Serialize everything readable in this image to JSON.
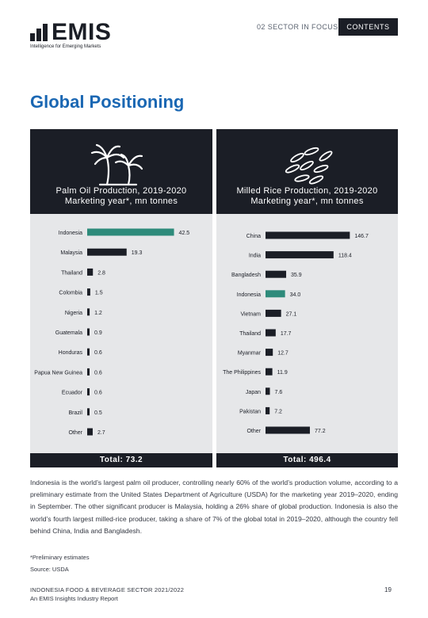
{
  "brand": {
    "name": "EMIS",
    "tagline": "Intelligence for Emerging Markets"
  },
  "nav": {
    "section": "02 SECTOR IN FOCUS",
    "contents": "CONTENTS"
  },
  "page_title": "Global Positioning",
  "colors": {
    "dark": "#1b1e26",
    "accent": "#2e8b7b",
    "title_blue": "#1a67b3",
    "panel_bg": "#e6e7e9"
  },
  "chart_data": [
    {
      "type": "bar",
      "orientation": "horizontal",
      "title": "Palm Oil Production, 2019-2020 Marketing year*, mn tonnes",
      "title_lines": [
        "Palm Oil Production,  2019-2020",
        "Marketing year*, mn tonnes"
      ],
      "icon": "palm-trees-icon",
      "categories": [
        "Indonesia",
        "Malaysia",
        "Thailand",
        "Colombia",
        "Nigeria",
        "Guatemala",
        "Honduras",
        "Papua New Guinea",
        "Ecuador",
        "Brazil",
        "Other"
      ],
      "values": [
        42.5,
        19.3,
        2.8,
        1.5,
        1.2,
        0.9,
        0.6,
        0.6,
        0.6,
        0.5,
        2.7
      ],
      "value_labels": [
        "42.5",
        "19.3",
        "2.8",
        "1.5",
        "1.2",
        "0.9",
        "0.6",
        "0.6",
        "0.6",
        "0.5",
        "2.7"
      ],
      "highlight": "Indonesia",
      "xlim": [
        0,
        45
      ],
      "total": "Total: 73.2"
    },
    {
      "type": "bar",
      "orientation": "horizontal",
      "title": "Milled Rice Production, 2019-2020 Marketing year*, mn tonnes",
      "title_lines": [
        "Milled Rice Production, 2019-2020",
        "Marketing year*, mn tonnes"
      ],
      "icon": "rice-grains-icon",
      "categories": [
        "China",
        "India",
        "Bangladesh",
        "Indonesia",
        "Vietnam",
        "Thailand",
        "Myanmar",
        "The Philippines",
        "Japan",
        "Pakistan",
        "Other"
      ],
      "values": [
        146.7,
        118.4,
        35.9,
        34.0,
        27.1,
        17.7,
        12.7,
        11.9,
        7.6,
        7.2,
        77.2
      ],
      "value_labels": [
        "146.7",
        "118.4",
        "35.9",
        "34.0",
        "27.1",
        "17.7",
        "12.7",
        "11.9",
        "7.6",
        "7.2",
        "77.2"
      ],
      "highlight": "Indonesia",
      "xlim": [
        0,
        160
      ],
      "total": "Total: 496.4"
    }
  ],
  "body_text": "Indonesia is the world’s largest palm oil producer, controlling nearly 60% of the world’s production volume, according to a preliminary estimate from the United States Department of Agriculture (USDA) for the marketing year 2019–2020, ending in September. The other significant producer is Malaysia, holding a 26% share of global production. Indonesia is also the world’s fourth largest milled-rice producer, taking a share of 7% of the global total in 2019–2020, although the country fell behind China, India and Bangladesh.",
  "note": "*Preliminary estimates",
  "source": "Source: USDA",
  "footer": {
    "line1": "INDONESIA FOOD & BEVERAGE SECTOR 2021/2022",
    "line2": "An EMIS Insights Industry Report",
    "page": "19"
  }
}
